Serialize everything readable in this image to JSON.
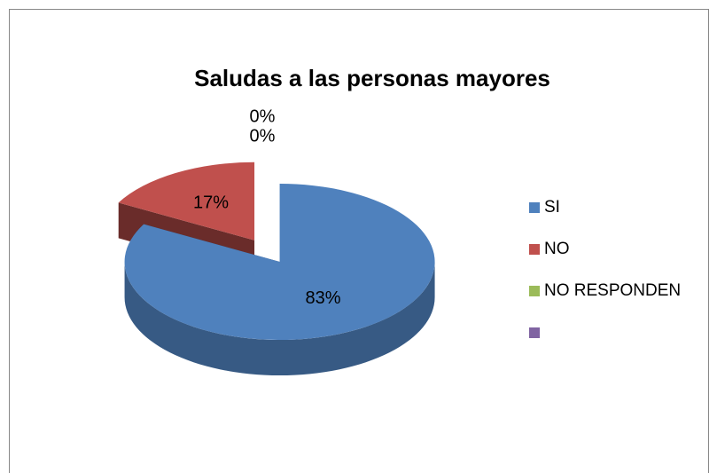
{
  "chart_data": {
    "type": "pie",
    "title": "Saludas a las personas mayores",
    "categories": [
      "SI",
      "NO",
      "NO RESPONDEN",
      null
    ],
    "values": [
      83,
      17,
      0,
      0
    ],
    "value_labels": [
      "83%",
      "17%",
      "0%",
      "0%"
    ],
    "colors": [
      "#4f81bd",
      "#c0504d",
      "#9bbb59",
      "#8064a2"
    ],
    "legend": "right"
  }
}
